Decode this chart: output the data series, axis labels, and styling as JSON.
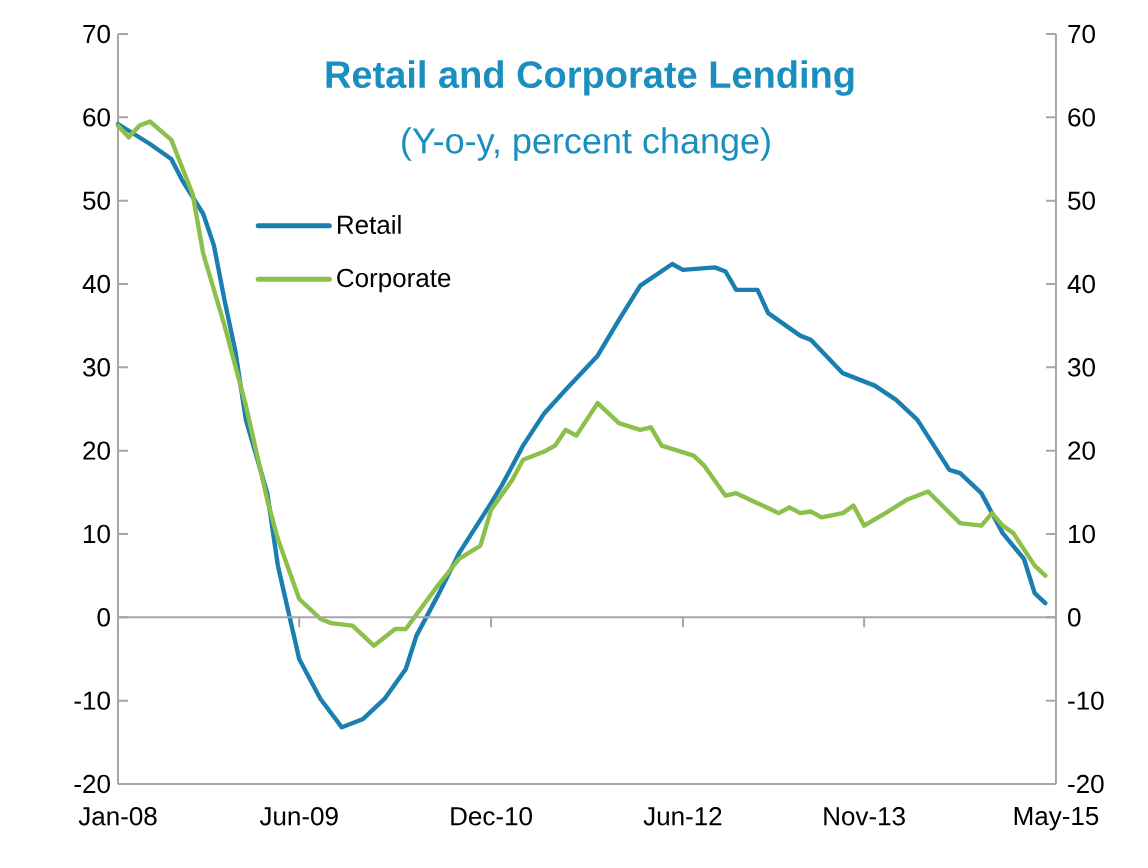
{
  "chart_data": {
    "type": "line",
    "title": "Retail and Corporate Lending",
    "subtitle": "(Y-o-y, percent change)",
    "xlim": [
      "2008-01",
      "2015-05"
    ],
    "xticks": [
      {
        "value": "2008-01",
        "label": "Jan-08"
      },
      {
        "value": "2009-06",
        "label": "Jun-09"
      },
      {
        "value": "2010-12",
        "label": "Dec-10"
      },
      {
        "value": "2012-06",
        "label": "Jun-12"
      },
      {
        "value": "2013-11",
        "label": "Nov-13"
      },
      {
        "value": "2015-05",
        "label": "May-15"
      }
    ],
    "ylim": [
      -20,
      70
    ],
    "yticks": [
      -20,
      -10,
      0,
      10,
      20,
      30,
      40,
      50,
      60,
      70
    ],
    "y2lim": [
      -20,
      70
    ],
    "y2ticks": [
      -20,
      -10,
      0,
      10,
      20,
      30,
      40,
      50,
      60,
      70
    ],
    "legend": "top left",
    "marker": "none",
    "line_style": "solid",
    "series": [
      {
        "name": "Retail",
        "color": "#1a7fb0",
        "x": [
          "2008-01",
          "2008-04",
          "2008-06",
          "2008-07",
          "2008-09",
          "2008-10",
          "2008-11",
          "2008-12",
          "2009-01",
          "2009-03",
          "2009-04",
          "2009-06",
          "2009-08",
          "2009-10",
          "2009-12",
          "2010-02",
          "2010-04",
          "2010-05",
          "2010-07",
          "2010-09",
          "2010-12",
          "2011-01",
          "2011-03",
          "2011-05",
          "2011-07",
          "2011-10",
          "2011-12",
          "2012-02",
          "2012-05",
          "2012-06",
          "2012-09",
          "2012-10",
          "2012-11",
          "2013-01",
          "2013-02",
          "2013-05",
          "2013-06",
          "2013-09",
          "2013-12",
          "2014-02",
          "2014-04",
          "2014-07",
          "2014-08",
          "2014-10",
          "2014-12",
          "2015-02",
          "2015-03",
          "2015-04"
        ],
        "values": [
          59.2,
          56.8,
          55,
          52.5,
          48.4,
          44.6,
          38,
          32,
          23.7,
          14.9,
          6.2,
          -5,
          -9.8,
          -13.2,
          -12.2,
          -9.8,
          -6.2,
          -2.2,
          2.6,
          7.7,
          13.7,
          15.8,
          20.6,
          24.5,
          27.3,
          31.4,
          35.7,
          39.8,
          42.4,
          41.7,
          42,
          41.5,
          39.3,
          39.3,
          36.5,
          33.8,
          33.3,
          29.3,
          27.8,
          26.1,
          23.7,
          17.7,
          17.3,
          14.9,
          10.1,
          7,
          2.9,
          1.7
        ]
      },
      {
        "name": "Corporate",
        "color": "#8cc04a",
        "x": [
          "2008-01",
          "2008-02",
          "2008-03",
          "2008-04",
          "2008-06",
          "2008-08",
          "2008-09",
          "2008-11",
          "2009-01",
          "2009-03",
          "2009-04",
          "2009-06",
          "2009-08",
          "2009-09",
          "2009-11",
          "2010-01",
          "2010-03",
          "2010-04",
          "2010-07",
          "2010-09",
          "2010-11",
          "2010-12",
          "2011-02",
          "2011-03",
          "2011-05",
          "2011-06",
          "2011-07",
          "2011-08",
          "2011-10",
          "2011-12",
          "2012-02",
          "2012-03",
          "2012-04",
          "2012-07",
          "2012-08",
          "2012-10",
          "2012-11",
          "2013-01",
          "2013-03",
          "2013-04",
          "2013-05",
          "2013-06",
          "2013-07",
          "2013-09",
          "2013-10",
          "2013-11",
          "2014-01",
          "2014-03",
          "2014-05",
          "2014-08",
          "2014-10",
          "2014-11",
          "2014-12",
          "2015-01",
          "2015-03",
          "2015-04"
        ],
        "values": [
          59,
          57.6,
          59,
          59.5,
          57.3,
          50.8,
          43.6,
          35,
          25.4,
          14.1,
          9.4,
          2.2,
          -0.2,
          -0.7,
          -1,
          -3.4,
          -1.4,
          -1.4,
          3.8,
          7,
          8.6,
          12.9,
          16.5,
          18.9,
          19.9,
          20.6,
          22.5,
          21.8,
          25.7,
          23.3,
          22.5,
          22.8,
          20.6,
          19.4,
          18.2,
          14.6,
          14.9,
          13.7,
          12.5,
          13.2,
          12.5,
          12.7,
          12,
          12.5,
          13.4,
          11,
          12.5,
          14.1,
          15.1,
          11.3,
          11,
          12.5,
          11,
          10.1,
          6.2,
          5
        ]
      }
    ]
  }
}
